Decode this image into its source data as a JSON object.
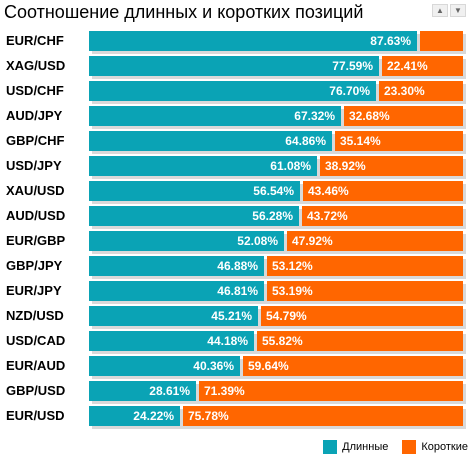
{
  "header": {
    "title": "Соотношение длинных и коротких позиций",
    "scroll_up_icon": "triangle-up-icon",
    "scroll_down_icon": "triangle-down-icon"
  },
  "colors": {
    "long": "#0aa3b5",
    "short": "#ff6600"
  },
  "chart_data": {
    "type": "bar",
    "orientation": "horizontal",
    "stacked": true,
    "categories": [
      "EUR/CHF",
      "XAG/USD",
      "USD/CHF",
      "AUD/JPY",
      "GBP/CHF",
      "USD/JPY",
      "XAU/USD",
      "AUD/USD",
      "EUR/GBP",
      "GBP/JPY",
      "EUR/JPY",
      "NZD/USD",
      "USD/CAD",
      "EUR/AUD",
      "GBP/USD",
      "EUR/USD"
    ],
    "series": [
      {
        "name": "Длинные",
        "values": [
          87.63,
          77.59,
          76.7,
          67.32,
          64.86,
          61.08,
          56.54,
          56.28,
          52.08,
          46.88,
          46.81,
          45.21,
          44.18,
          40.36,
          28.61,
          24.22
        ],
        "labels": [
          "87.63%",
          "77.59%",
          "76.70%",
          "67.32%",
          "64.86%",
          "61.08%",
          "56.54%",
          "56.28%",
          "52.08%",
          "46.88%",
          "46.81%",
          "45.21%",
          "44.18%",
          "40.36%",
          "28.61%",
          "24.22%"
        ]
      },
      {
        "name": "Короткие",
        "values": [
          12.37,
          22.41,
          23.3,
          32.68,
          35.14,
          38.92,
          43.46,
          43.72,
          47.92,
          53.12,
          53.19,
          54.79,
          55.82,
          59.64,
          71.39,
          75.78
        ],
        "labels": [
          "",
          "22.41%",
          "23.30%",
          "32.68%",
          "35.14%",
          "38.92%",
          "43.46%",
          "43.72%",
          "47.92%",
          "53.12%",
          "53.19%",
          "54.79%",
          "55.82%",
          "59.64%",
          "71.39%",
          "75.78%"
        ]
      }
    ],
    "xlim": [
      0,
      100
    ],
    "legend": "bottom-right"
  }
}
